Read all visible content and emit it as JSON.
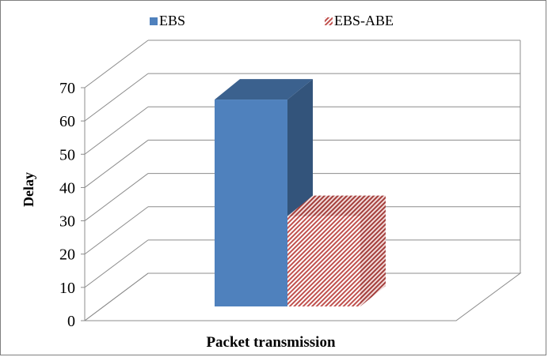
{
  "chart_data": {
    "type": "bar",
    "style": "3d-clustered-column",
    "title": "",
    "categories": [
      ""
    ],
    "series": [
      {
        "name": "EBS",
        "values": [
          65
        ],
        "color": "#4f81bd"
      },
      {
        "name": "EBS-ABE",
        "values": [
          30
        ],
        "color": "#c0504d",
        "pattern": "diagonal-stripes"
      }
    ],
    "xlabel": "Packet transmission",
    "ylabel": "Delay",
    "ylim": [
      0,
      70
    ],
    "yticks": [
      "0",
      "10",
      "20",
      "30",
      "40",
      "50",
      "60",
      "70"
    ],
    "grid": true,
    "legend_position": "top"
  }
}
